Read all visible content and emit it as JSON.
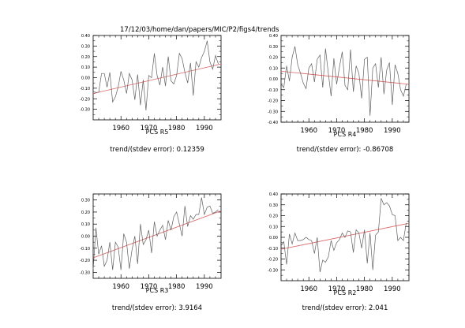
{
  "page_title": "17/12/03/home/dan/papers/MIC/P2/figs4/trends",
  "trend_label": "trend/(stdev error):",
  "colors": {
    "axes": "#000000",
    "series": "#606060",
    "trend": "#e06060"
  },
  "chart_data": [
    {
      "type": "line",
      "title": "PCS R5",
      "trend_value": "0.12359",
      "xlim": [
        1950,
        1996
      ],
      "ylim": [
        -0.4,
        0.4
      ],
      "xticks": [
        1960,
        1970,
        1980,
        1990
      ],
      "yticks": [
        "-0.30",
        "-0.20",
        "-0.10",
        "0.00",
        "0.10",
        "0.20",
        "0.30",
        "0.40"
      ],
      "trend_line": {
        "x": [
          1950,
          1996
        ],
        "y": [
          -0.15,
          0.13
        ]
      },
      "series": [
        {
          "x": [
            1950,
            1951,
            1952,
            1953,
            1954,
            1955,
            1956,
            1957,
            1958,
            1959,
            1960,
            1961,
            1962,
            1963,
            1964,
            1965,
            1966,
            1967,
            1968,
            1969,
            1970,
            1971,
            1972,
            1973,
            1974,
            1975,
            1976,
            1977,
            1978,
            1979,
            1980,
            1981,
            1982,
            1983,
            1984,
            1985,
            1986,
            1987,
            1988,
            1989,
            1990,
            1991,
            1992,
            1993,
            1994,
            1995
          ],
          "y": [
            -0.13,
            -0.14,
            -0.14,
            0.04,
            0.04,
            -0.09,
            0.05,
            -0.23,
            -0.18,
            -0.09,
            0.06,
            -0.02,
            -0.15,
            0.04,
            -0.02,
            -0.21,
            0.03,
            -0.26,
            -0.02,
            -0.31,
            0.02,
            0.0,
            0.23,
            0.02,
            -0.07,
            0.1,
            -0.08,
            0.2,
            -0.03,
            -0.06,
            0.02,
            0.23,
            0.18,
            0.05,
            -0.05,
            0.14,
            -0.17,
            0.15,
            0.1,
            0.19,
            0.25,
            0.35,
            0.15,
            0.08,
            0.21,
            0.13
          ]
        }
      ]
    },
    {
      "type": "line",
      "title": "PCS R4",
      "trend_value": "-0.86708",
      "xlim": [
        1950,
        1996
      ],
      "ylim": [
        -0.4,
        0.4
      ],
      "xticks": [
        1960,
        1970,
        1980,
        1990
      ],
      "yticks": [
        "-0.40",
        "-0.30",
        "-0.20",
        "-0.10",
        "0.00",
        "0.10",
        "0.20",
        "0.30",
        "0.40"
      ],
      "trend_line": {
        "x": [
          1950,
          1996
        ],
        "y": [
          0.07,
          -0.05
        ]
      },
      "series": [
        {
          "x": [
            1950,
            1951,
            1952,
            1953,
            1954,
            1955,
            1956,
            1957,
            1958,
            1959,
            1960,
            1961,
            1962,
            1963,
            1964,
            1965,
            1966,
            1967,
            1968,
            1969,
            1970,
            1971,
            1972,
            1973,
            1974,
            1975,
            1976,
            1977,
            1978,
            1979,
            1980,
            1981,
            1982,
            1983,
            1984,
            1985,
            1986,
            1987,
            1988,
            1989,
            1990,
            1991,
            1992,
            1993,
            1994,
            1995
          ],
          "y": [
            -0.05,
            -0.08,
            0.12,
            -0.02,
            0.2,
            0.3,
            0.13,
            0.05,
            -0.04,
            -0.09,
            0.1,
            0.14,
            -0.03,
            0.18,
            0.22,
            -0.08,
            0.28,
            0.05,
            -0.16,
            0.19,
            -0.05,
            0.11,
            0.25,
            -0.06,
            -0.1,
            0.27,
            -0.12,
            0.12,
            0.05,
            -0.18,
            0.18,
            0.2,
            -0.34,
            0.1,
            0.14,
            -0.08,
            0.2,
            -0.14,
            0.08,
            0.15,
            -0.24,
            0.13,
            0.05,
            -0.1,
            -0.16,
            -0.05
          ]
        }
      ]
    },
    {
      "type": "line",
      "title": "PCS R3",
      "trend_value": "3.9164",
      "xlim": [
        1950,
        1996
      ],
      "ylim": [
        -0.35,
        0.35
      ],
      "xticks": [
        1960,
        1970,
        1980,
        1990
      ],
      "yticks": [
        "-0.30",
        "-0.20",
        "-0.10",
        "0.00",
        "0.10",
        "0.20",
        "0.30"
      ],
      "trend_line": {
        "x": [
          1950,
          1996
        ],
        "y": [
          -0.18,
          0.21
        ]
      },
      "series": [
        {
          "x": [
            1950,
            1951,
            1952,
            1953,
            1954,
            1955,
            1956,
            1957,
            1958,
            1959,
            1960,
            1961,
            1962,
            1963,
            1964,
            1965,
            1966,
            1967,
            1968,
            1969,
            1970,
            1971,
            1972,
            1973,
            1974,
            1975,
            1976,
            1977,
            1978,
            1979,
            1980,
            1981,
            1982,
            1983,
            1984,
            1985,
            1986,
            1987,
            1988,
            1989,
            1990,
            1991,
            1992,
            1993,
            1994,
            1995
          ],
          "y": [
            -0.28,
            0.07,
            -0.15,
            -0.08,
            -0.25,
            -0.2,
            -0.05,
            -0.28,
            -0.05,
            -0.09,
            -0.28,
            0.02,
            -0.05,
            -0.27,
            -0.11,
            0.0,
            -0.23,
            0.1,
            -0.07,
            -0.03,
            0.05,
            -0.14,
            0.12,
            0.0,
            0.05,
            0.09,
            -0.03,
            0.13,
            0.05,
            0.16,
            0.2,
            0.1,
            0.0,
            0.25,
            0.08,
            0.17,
            0.14,
            0.18,
            0.18,
            0.32,
            0.18,
            0.24,
            0.25,
            0.19,
            0.2,
            0.22
          ]
        }
      ]
    },
    {
      "type": "line",
      "title": "PCS R2",
      "trend_value": "2.041",
      "xlim": [
        1950,
        1996
      ],
      "ylim": [
        -0.4,
        0.4
      ],
      "xticks": [
        1960,
        1970,
        1980,
        1990
      ],
      "yticks": [
        "-0.30",
        "-0.20",
        "-0.10",
        "0.00",
        "0.10",
        "0.20",
        "0.30",
        "0.40"
      ],
      "trend_line": {
        "x": [
          1950,
          1996
        ],
        "y": [
          -0.11,
          0.13
        ]
      },
      "series": [
        {
          "x": [
            1950,
            1951,
            1952,
            1953,
            1954,
            1955,
            1956,
            1957,
            1958,
            1959,
            1960,
            1961,
            1962,
            1963,
            1964,
            1965,
            1966,
            1967,
            1968,
            1969,
            1970,
            1971,
            1972,
            1973,
            1974,
            1975,
            1976,
            1977,
            1978,
            1979,
            1980,
            1981,
            1982,
            1983,
            1984,
            1985,
            1986,
            1987,
            1988,
            1989,
            1990,
            1991,
            1992,
            1993,
            1994,
            1995
          ],
          "y": [
            -0.08,
            -0.04,
            -0.25,
            0.03,
            -0.06,
            0.04,
            -0.03,
            -0.03,
            -0.02,
            0.0,
            -0.02,
            -0.03,
            -0.15,
            0.0,
            -0.32,
            -0.21,
            -0.23,
            -0.18,
            -0.03,
            -0.12,
            -0.05,
            -0.02,
            0.04,
            0.0,
            0.06,
            0.05,
            -0.14,
            0.07,
            0.04,
            -0.1,
            0.07,
            -0.24,
            0.04,
            -0.3,
            0.02,
            0.05,
            0.36,
            0.3,
            0.32,
            0.29,
            0.21,
            0.2,
            -0.03,
            0.0,
            -0.03,
            0.13
          ]
        }
      ]
    }
  ]
}
